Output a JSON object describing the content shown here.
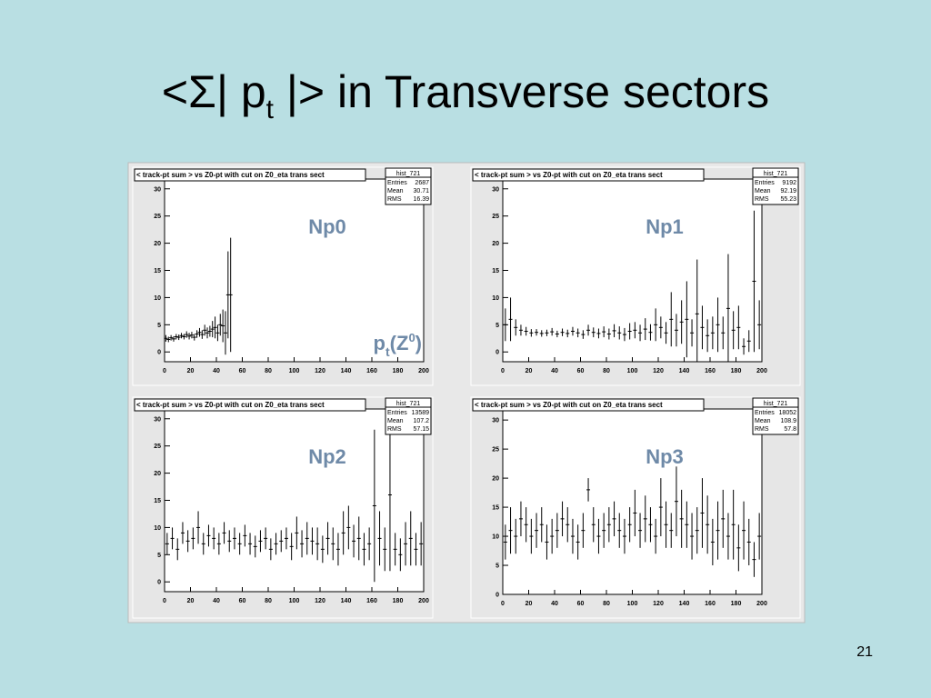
{
  "slide": {
    "title_parts": [
      "<Σ| p",
      "t",
      " |> in Transverse sectors"
    ],
    "page_number": 21
  },
  "chart_data": [
    {
      "type": "errorbar",
      "title": "< track-pt sum > vs Z0-pt with cut on Z0_eta trans sect",
      "label": "Np0",
      "annotation_parts": [
        "p",
        "t",
        "(Z",
        "0",
        ")"
      ],
      "stats": {
        "name": "hist_721",
        "rows": [
          [
            "Entries",
            2687
          ],
          [
            "Mean",
            30.71
          ],
          [
            "RMS",
            16.39
          ]
        ]
      },
      "xlim": [
        0,
        200
      ],
      "xticks": [
        0,
        20,
        40,
        60,
        80,
        100,
        120,
        140,
        160,
        180,
        200
      ],
      "ylim": [
        -1.8,
        31.8
      ],
      "yticks": [
        0,
        5,
        10,
        15,
        20,
        25,
        30
      ],
      "x": [
        1,
        3,
        5,
        7,
        9,
        11,
        13,
        15,
        17,
        19,
        21,
        23,
        25,
        27,
        29,
        31,
        33,
        35,
        37,
        39,
        41,
        43,
        45,
        47,
        49,
        51
      ],
      "values": [
        2.5,
        2.3,
        2.6,
        2.4,
        2.8,
        2.7,
        3,
        2.8,
        3.2,
        2.9,
        3.1,
        2.7,
        3.3,
        3.6,
        3.2,
        4,
        3.5,
        3.8,
        4.2,
        4.5,
        3.5,
        5,
        4.8,
        3.5,
        10.5,
        10.5
      ],
      "errors": [
        0.6,
        0.5,
        0.5,
        0.5,
        0.5,
        0.5,
        0.5,
        0.5,
        0.6,
        0.6,
        0.6,
        0.6,
        0.7,
        0.8,
        0.8,
        1,
        1,
        1,
        1.5,
        2,
        1.5,
        2,
        3,
        4,
        8,
        10.5
      ]
    },
    {
      "type": "errorbar",
      "title": "< track-pt sum > vs Z0-pt with cut on Z0_eta trans sect",
      "label": "Np1",
      "stats": {
        "name": "hist_721",
        "rows": [
          [
            "Entries",
            9192
          ],
          [
            "Mean",
            92.19
          ],
          [
            "RMS",
            55.23
          ]
        ]
      },
      "xlim": [
        0,
        200
      ],
      "xticks": [
        0,
        20,
        40,
        60,
        80,
        100,
        120,
        140,
        160,
        180,
        200
      ],
      "ylim": [
        -1.8,
        31.8
      ],
      "yticks": [
        0,
        5,
        10,
        15,
        20,
        25,
        30
      ],
      "x": [
        2,
        6,
        10,
        14,
        18,
        22,
        26,
        30,
        34,
        38,
        42,
        46,
        50,
        54,
        58,
        62,
        66,
        70,
        74,
        78,
        82,
        86,
        90,
        94,
        98,
        102,
        106,
        110,
        114,
        118,
        122,
        126,
        130,
        134,
        138,
        142,
        146,
        150,
        154,
        158,
        162,
        166,
        170,
        174,
        178,
        182,
        186,
        190,
        194,
        198
      ],
      "values": [
        5,
        6,
        4.5,
        4,
        3.8,
        3.5,
        3.6,
        3.4,
        3.5,
        3.7,
        3.3,
        3.6,
        3.4,
        3.8,
        3.5,
        3.2,
        4,
        3.6,
        3.4,
        3.7,
        3.3,
        3.9,
        3.5,
        3.2,
        3.8,
        4,
        3.5,
        4.2,
        3.6,
        5,
        4.5,
        3.5,
        6,
        4,
        5.5,
        6,
        3.5,
        7,
        4.5,
        3,
        3.5,
        5,
        3.5,
        8,
        4,
        4.5,
        1,
        2,
        13,
        5
      ],
      "errors": [
        3,
        4,
        1.5,
        1,
        0.8,
        0.7,
        0.6,
        0.6,
        0.6,
        0.7,
        0.6,
        0.7,
        0.7,
        0.8,
        0.8,
        0.8,
        1,
        0.9,
        0.9,
        1,
        1,
        1.2,
        1.2,
        1.2,
        1.5,
        1.5,
        1.5,
        2,
        1.5,
        3,
        2,
        2,
        5,
        3,
        4,
        7,
        2.5,
        10,
        4,
        3,
        3,
        5,
        3,
        10,
        3.5,
        4,
        1.5,
        2,
        13,
        4.5
      ]
    },
    {
      "type": "errorbar",
      "title": "< track-pt sum > vs Z0-pt with cut on Z0_eta trans sect",
      "label": "Np2",
      "stats": {
        "name": "hist_721",
        "rows": [
          [
            "Entries",
            13589
          ],
          [
            "Mean",
            107.2
          ],
          [
            "RMS",
            57.15
          ]
        ]
      },
      "xlim": [
        0,
        200
      ],
      "xticks": [
        0,
        20,
        40,
        60,
        80,
        100,
        120,
        140,
        160,
        180,
        200
      ],
      "ylim": [
        -1.8,
        31.8
      ],
      "yticks": [
        0,
        5,
        10,
        15,
        20,
        25,
        30
      ],
      "x": [
        2,
        6,
        10,
        14,
        18,
        22,
        26,
        30,
        34,
        38,
        42,
        46,
        50,
        54,
        58,
        62,
        66,
        70,
        74,
        78,
        82,
        86,
        90,
        94,
        98,
        102,
        106,
        110,
        114,
        118,
        122,
        126,
        130,
        134,
        138,
        142,
        146,
        150,
        154,
        158,
        162,
        166,
        170,
        174,
        178,
        182,
        186,
        190,
        194,
        198
      ],
      "values": [
        7,
        8,
        6,
        9,
        7.5,
        8,
        10,
        7,
        8.5,
        8,
        7,
        9,
        7.5,
        8,
        7,
        8.5,
        7,
        6.5,
        7.5,
        8,
        6,
        7,
        7.5,
        8,
        6.5,
        9,
        7,
        8,
        7.5,
        7,
        6,
        8,
        7,
        6,
        9,
        10,
        7.5,
        8,
        6,
        7,
        14,
        8,
        6,
        16,
        6,
        5,
        7,
        8,
        6,
        7
      ],
      "errors": [
        2,
        2,
        2,
        2,
        2,
        2,
        3,
        2,
        2,
        2,
        2,
        2,
        2,
        2,
        2,
        2,
        2,
        2,
        2,
        2,
        2,
        2,
        2,
        2,
        2.5,
        3,
        2.5,
        3,
        2.5,
        3,
        2.5,
        3,
        3,
        3,
        4,
        4,
        3,
        4,
        3,
        3,
        14,
        5,
        4,
        14,
        3,
        3,
        4,
        5,
        3,
        4
      ]
    },
    {
      "type": "errorbar",
      "title": "< track-pt sum > vs Z0-pt with cut on Z0_eta trans sect",
      "label": "Np3",
      "stats": {
        "name": "hist_721",
        "rows": [
          [
            "Entries",
            18052
          ],
          [
            "Mean",
            108.9
          ],
          [
            "RMS",
            57.8
          ]
        ]
      },
      "xlim": [
        0,
        200
      ],
      "xticks": [
        0,
        20,
        40,
        60,
        80,
        100,
        120,
        140,
        160,
        180,
        200
      ],
      "ylim": [
        0,
        31.9
      ],
      "yticks": [
        0,
        5,
        10,
        15,
        20,
        25,
        30
      ],
      "x": [
        2,
        6,
        10,
        14,
        18,
        22,
        26,
        30,
        34,
        38,
        42,
        46,
        50,
        54,
        58,
        62,
        66,
        70,
        74,
        78,
        82,
        86,
        90,
        94,
        98,
        102,
        106,
        110,
        114,
        118,
        122,
        126,
        130,
        134,
        138,
        142,
        146,
        150,
        154,
        158,
        162,
        166,
        170,
        174,
        178,
        182,
        186,
        190,
        194,
        198
      ],
      "values": [
        9,
        11,
        10,
        13,
        12,
        10,
        11,
        12,
        9,
        10,
        11,
        13,
        12,
        10,
        9,
        11,
        18,
        12,
        10,
        11,
        12,
        13,
        11,
        10,
        12,
        14,
        11,
        13,
        12,
        10,
        15,
        12,
        11,
        16,
        13,
        12,
        10,
        11,
        14,
        12,
        9,
        11,
        13,
        10,
        12,
        8,
        11,
        9,
        6,
        10
      ],
      "errors": [
        3,
        4,
        3,
        3,
        3,
        3,
        3,
        3,
        3,
        3,
        3,
        3,
        3,
        3,
        3,
        3,
        2,
        3,
        3,
        3,
        3,
        3,
        3,
        3,
        3,
        4,
        3,
        4,
        3,
        3,
        5,
        4,
        3,
        6,
        5,
        4,
        4,
        4,
        6,
        5,
        4,
        5,
        5,
        4,
        6,
        4,
        5,
        4,
        3,
        4
      ]
    }
  ]
}
